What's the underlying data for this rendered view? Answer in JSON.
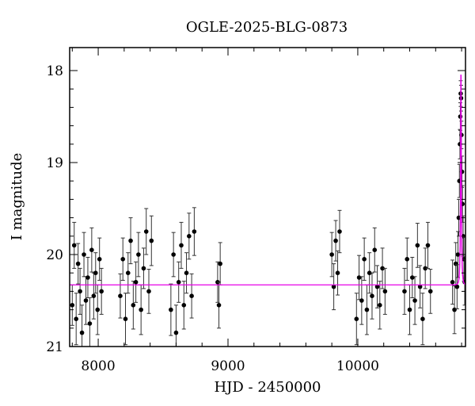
{
  "chart_data": {
    "type": "scatter",
    "title": "OGLE-2025-BLG-0873",
    "xlabel": "HJD - 2450000",
    "ylabel": "I magnitude",
    "xlim": [
      7780,
      10830
    ],
    "ylim": [
      21,
      17.75
    ],
    "y_inverted": true,
    "x_ticks": [
      8000,
      9000,
      10000
    ],
    "y_ticks": [
      18,
      19,
      20,
      21
    ],
    "grid": false,
    "colors": {
      "points": "#000000",
      "errorbars": "#333333",
      "model": "#e600e6"
    },
    "baseline_mag": 20.33,
    "peak": {
      "t0": 10795,
      "u0": 0.007,
      "tE": 8,
      "peak_mag": 18.05
    },
    "points": [
      [
        7800,
        20.55,
        0.22
      ],
      [
        7815,
        19.9,
        0.25
      ],
      [
        7830,
        20.7,
        0.28
      ],
      [
        7845,
        20.1,
        0.22
      ],
      [
        7860,
        20.4,
        0.25
      ],
      [
        7875,
        20.85,
        0.3
      ],
      [
        7890,
        20.0,
        0.24
      ],
      [
        7905,
        20.5,
        0.26
      ],
      [
        7920,
        20.25,
        0.22
      ],
      [
        7935,
        20.75,
        0.28
      ],
      [
        7950,
        19.95,
        0.24
      ],
      [
        7965,
        20.45,
        0.25
      ],
      [
        7980,
        20.2,
        0.22
      ],
      [
        7995,
        20.6,
        0.27
      ],
      [
        8010,
        20.05,
        0.23
      ],
      [
        8025,
        20.4,
        0.25
      ],
      [
        8170,
        20.45,
        0.24
      ],
      [
        8190,
        20.05,
        0.23
      ],
      [
        8210,
        20.7,
        0.28
      ],
      [
        8230,
        20.2,
        0.22
      ],
      [
        8250,
        19.85,
        0.25
      ],
      [
        8270,
        20.55,
        0.26
      ],
      [
        8290,
        20.3,
        0.22
      ],
      [
        8310,
        20.0,
        0.24
      ],
      [
        8330,
        20.6,
        0.27
      ],
      [
        8350,
        20.15,
        0.22
      ],
      [
        8370,
        19.75,
        0.25
      ],
      [
        8390,
        20.4,
        0.24
      ],
      [
        8410,
        19.85,
        0.27
      ],
      [
        8560,
        20.6,
        0.28
      ],
      [
        8580,
        20.0,
        0.24
      ],
      [
        8600,
        20.85,
        0.3
      ],
      [
        8620,
        20.3,
        0.22
      ],
      [
        8640,
        19.9,
        0.25
      ],
      [
        8660,
        20.55,
        0.26
      ],
      [
        8680,
        20.2,
        0.22
      ],
      [
        8700,
        19.8,
        0.25
      ],
      [
        8720,
        20.45,
        0.24
      ],
      [
        8740,
        19.75,
        0.26
      ],
      [
        8920,
        20.3,
        0.22
      ],
      [
        8930,
        20.55,
        0.25
      ],
      [
        8940,
        20.1,
        0.23
      ],
      [
        9800,
        20.0,
        0.24
      ],
      [
        9815,
        20.35,
        0.25
      ],
      [
        9830,
        19.85,
        0.22
      ],
      [
        9845,
        20.2,
        0.24
      ],
      [
        9860,
        19.75,
        0.23
      ],
      [
        9990,
        20.7,
        0.28
      ],
      [
        10010,
        20.25,
        0.24
      ],
      [
        10030,
        20.5,
        0.26
      ],
      [
        10050,
        20.05,
        0.23
      ],
      [
        10070,
        20.6,
        0.27
      ],
      [
        10090,
        20.2,
        0.22
      ],
      [
        10110,
        20.45,
        0.25
      ],
      [
        10130,
        19.95,
        0.24
      ],
      [
        10150,
        20.35,
        0.23
      ],
      [
        10170,
        20.55,
        0.26
      ],
      [
        10190,
        20.15,
        0.22
      ],
      [
        10210,
        20.4,
        0.25
      ],
      [
        10360,
        20.4,
        0.25
      ],
      [
        10380,
        20.05,
        0.23
      ],
      [
        10400,
        20.6,
        0.27
      ],
      [
        10420,
        20.25,
        0.22
      ],
      [
        10440,
        20.5,
        0.26
      ],
      [
        10460,
        19.9,
        0.24
      ],
      [
        10480,
        20.35,
        0.23
      ],
      [
        10500,
        20.7,
        0.28
      ],
      [
        10520,
        20.15,
        0.22
      ],
      [
        10540,
        19.9,
        0.25
      ],
      [
        10560,
        20.4,
        0.24
      ],
      [
        10730,
        20.3,
        0.24
      ],
      [
        10745,
        20.6,
        0.26
      ],
      [
        10755,
        20.1,
        0.23
      ],
      [
        10765,
        20.35,
        0.24
      ],
      [
        10772,
        20.0,
        0.25
      ],
      [
        10778,
        19.6,
        0.2
      ],
      [
        10783,
        19.2,
        0.18
      ],
      [
        10787,
        18.8,
        0.16
      ],
      [
        10790,
        18.5,
        0.15
      ],
      [
        10793,
        18.25,
        0.14
      ],
      [
        10796,
        18.3,
        0.14
      ],
      [
        10799,
        18.7,
        0.15
      ],
      [
        10803,
        19.1,
        0.17
      ],
      [
        10807,
        19.45,
        0.2
      ],
      [
        10812,
        19.8,
        0.22
      ],
      [
        10818,
        20.05,
        0.24
      ],
      [
        10824,
        20.3,
        0.25
      ]
    ]
  }
}
